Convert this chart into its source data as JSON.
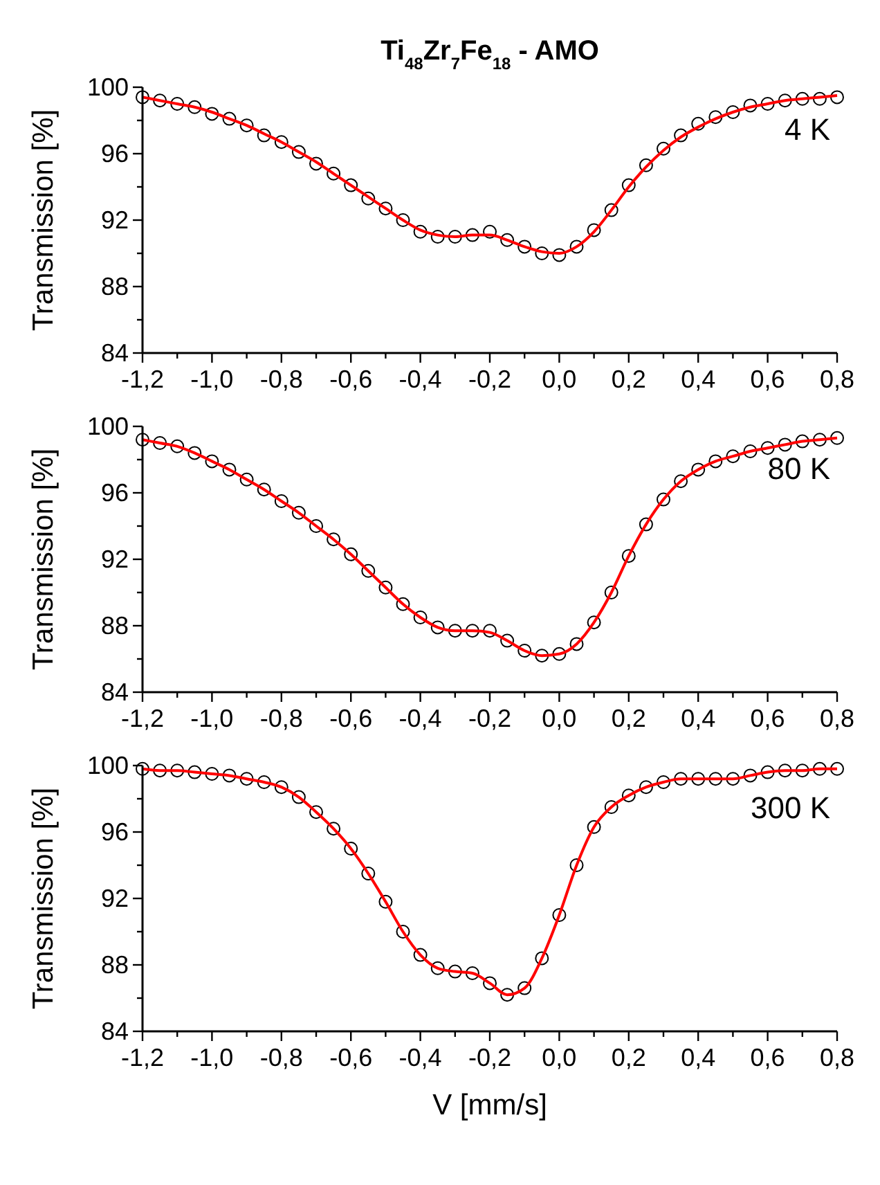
{
  "chart_data": [
    {
      "type": "scatter",
      "title": "Ti$_{48}$Zr$_{7}$Fe$_{18}$ - AMO",
      "ylabel": "Transmission [%]",
      "annotations": [
        "4 K"
      ],
      "x": [
        -1.2,
        -1.15,
        -1.1,
        -1.05,
        -1.0,
        -0.95,
        -0.9,
        -0.85,
        -0.8,
        -0.75,
        -0.7,
        -0.65,
        -0.6,
        -0.55,
        -0.5,
        -0.45,
        -0.4,
        -0.35,
        -0.3,
        -0.25,
        -0.2,
        -0.15,
        -0.1,
        -0.05,
        0.0,
        0.05,
        0.1,
        0.15,
        0.2,
        0.25,
        0.3,
        0.35,
        0.4,
        0.45,
        0.5,
        0.55,
        0.6,
        0.65,
        0.7,
        0.75,
        0.8
      ],
      "series": [
        {
          "marker": "circle",
          "color": "#000000",
          "values": [
            99.4,
            99.2,
            99.0,
            98.8,
            98.4,
            98.1,
            97.7,
            97.1,
            96.7,
            96.1,
            95.4,
            94.8,
            94.1,
            93.3,
            92.7,
            92.0,
            91.3,
            91.0,
            91.0,
            91.1,
            91.3,
            90.8,
            90.4,
            90.0,
            89.9,
            90.4,
            91.4,
            92.6,
            94.1,
            95.3,
            96.3,
            97.1,
            97.8,
            98.2,
            98.5,
            98.9,
            99.0,
            99.2,
            99.3,
            99.3,
            99.4
          ]
        },
        {
          "type": "line",
          "marker": "none",
          "color": "#ff0000",
          "values": [
            99.4,
            99.2,
            99.0,
            98.8,
            98.5,
            98.1,
            97.7,
            97.2,
            96.7,
            96.1,
            95.5,
            94.8,
            94.1,
            93.4,
            92.7,
            92.0,
            91.4,
            91.1,
            91.0,
            91.1,
            91.1,
            90.8,
            90.4,
            90.1,
            90.0,
            90.4,
            91.3,
            92.6,
            94.0,
            95.2,
            96.2,
            97.0,
            97.6,
            98.1,
            98.5,
            98.8,
            99.0,
            99.2,
            99.3,
            99.4,
            99.5
          ]
        }
      ],
      "xlim": [
        -1.2,
        0.8
      ],
      "ylim": [
        84,
        100
      ],
      "xticks": [
        {
          "value": -1.2,
          "label": "-1,2"
        },
        {
          "value": -1.1,
          "label": null
        },
        {
          "value": -1.0,
          "label": "-1,0"
        },
        {
          "value": -0.9,
          "label": null
        },
        {
          "value": -0.8,
          "label": "-0,8"
        },
        {
          "value": -0.7,
          "label": null
        },
        {
          "value": -0.6,
          "label": "-0,6"
        },
        {
          "value": -0.5,
          "label": null
        },
        {
          "value": -0.4,
          "label": "-0,4"
        },
        {
          "value": -0.3,
          "label": null
        },
        {
          "value": -0.2,
          "label": "-0,2"
        },
        {
          "value": -0.1,
          "label": null
        },
        {
          "value": 0.0,
          "label": "0,0"
        },
        {
          "value": 0.1,
          "label": null
        },
        {
          "value": 0.2,
          "label": "0,2"
        },
        {
          "value": 0.3,
          "label": null
        },
        {
          "value": 0.4,
          "label": "0,4"
        },
        {
          "value": 0.5,
          "label": null
        },
        {
          "value": 0.6,
          "label": "0,6"
        },
        {
          "value": 0.7,
          "label": null
        },
        {
          "value": 0.8,
          "label": "0,8"
        }
      ],
      "yticks": [
        84,
        {
          "value": 86,
          "label": null
        },
        88,
        {
          "value": 90,
          "label": null
        },
        92,
        {
          "value": 94,
          "label": null
        },
        96,
        {
          "value": 98,
          "label": null
        },
        100
      ],
      "grid": false
    },
    {
      "type": "scatter",
      "ylabel": "Transmission [%]",
      "annotations": [
        "80 K"
      ],
      "x": [
        -1.2,
        -1.15,
        -1.1,
        -1.05,
        -1.0,
        -0.95,
        -0.9,
        -0.85,
        -0.8,
        -0.75,
        -0.7,
        -0.65,
        -0.6,
        -0.55,
        -0.5,
        -0.45,
        -0.4,
        -0.35,
        -0.3,
        -0.25,
        -0.2,
        -0.15,
        -0.1,
        -0.05,
        0.0,
        0.05,
        0.1,
        0.15,
        0.2,
        0.25,
        0.3,
        0.35,
        0.4,
        0.45,
        0.5,
        0.55,
        0.6,
        0.65,
        0.7,
        0.75,
        0.8
      ],
      "series": [
        {
          "marker": "circle",
          "color": "#000000",
          "values": [
            99.2,
            99.0,
            98.8,
            98.4,
            97.9,
            97.4,
            96.8,
            96.2,
            95.5,
            94.8,
            94.0,
            93.2,
            92.3,
            91.3,
            90.3,
            89.3,
            88.5,
            87.9,
            87.7,
            87.7,
            87.7,
            87.1,
            86.5,
            86.2,
            86.3,
            86.9,
            88.2,
            90.0,
            92.2,
            94.1,
            95.6,
            96.7,
            97.4,
            97.9,
            98.2,
            98.5,
            98.7,
            98.9,
            99.1,
            99.2,
            99.3
          ]
        },
        {
          "type": "line",
          "marker": "none",
          "color": "#ff0000",
          "values": [
            99.2,
            99.0,
            98.8,
            98.4,
            97.9,
            97.4,
            96.8,
            96.2,
            95.5,
            94.8,
            94.0,
            93.2,
            92.3,
            91.3,
            90.3,
            89.3,
            88.5,
            87.9,
            87.7,
            87.7,
            87.6,
            87.1,
            86.5,
            86.2,
            86.3,
            86.9,
            88.2,
            90.0,
            92.2,
            94.1,
            95.6,
            96.7,
            97.4,
            97.9,
            98.2,
            98.5,
            98.7,
            98.9,
            99.1,
            99.2,
            99.3
          ]
        }
      ],
      "xlim": [
        -1.2,
        0.8
      ],
      "ylim": [
        84,
        100
      ],
      "xticks": [
        {
          "value": -1.2,
          "label": "-1,2"
        },
        {
          "value": -1.1,
          "label": null
        },
        {
          "value": -1.0,
          "label": "-1,0"
        },
        {
          "value": -0.9,
          "label": null
        },
        {
          "value": -0.8,
          "label": "-0,8"
        },
        {
          "value": -0.7,
          "label": null
        },
        {
          "value": -0.6,
          "label": "-0,6"
        },
        {
          "value": -0.5,
          "label": null
        },
        {
          "value": -0.4,
          "label": "-0,4"
        },
        {
          "value": -0.3,
          "label": null
        },
        {
          "value": -0.2,
          "label": "-0,2"
        },
        {
          "value": -0.1,
          "label": null
        },
        {
          "value": 0.0,
          "label": "0,0"
        },
        {
          "value": 0.1,
          "label": null
        },
        {
          "value": 0.2,
          "label": "0,2"
        },
        {
          "value": 0.3,
          "label": null
        },
        {
          "value": 0.4,
          "label": "0,4"
        },
        {
          "value": 0.5,
          "label": null
        },
        {
          "value": 0.6,
          "label": "0,6"
        },
        {
          "value": 0.7,
          "label": null
        },
        {
          "value": 0.8,
          "label": "0,8"
        }
      ],
      "yticks": [
        84,
        {
          "value": 86,
          "label": null
        },
        88,
        {
          "value": 90,
          "label": null
        },
        92,
        {
          "value": 94,
          "label": null
        },
        96,
        {
          "value": 98,
          "label": null
        },
        100
      ],
      "grid": false
    },
    {
      "type": "scatter",
      "xlabel": "V [mm/s]",
      "ylabel": "Transmission [%]",
      "annotations": [
        "300 K"
      ],
      "x": [
        -1.2,
        -1.15,
        -1.1,
        -1.05,
        -1.0,
        -0.95,
        -0.9,
        -0.85,
        -0.8,
        -0.75,
        -0.7,
        -0.65,
        -0.6,
        -0.55,
        -0.5,
        -0.45,
        -0.4,
        -0.35,
        -0.3,
        -0.25,
        -0.2,
        -0.15,
        -0.1,
        -0.05,
        0.0,
        0.05,
        0.1,
        0.15,
        0.2,
        0.25,
        0.3,
        0.35,
        0.4,
        0.45,
        0.5,
        0.55,
        0.6,
        0.65,
        0.7,
        0.75,
        0.8
      ],
      "series": [
        {
          "marker": "circle",
          "color": "#000000",
          "values": [
            99.8,
            99.7,
            99.7,
            99.6,
            99.5,
            99.4,
            99.2,
            99.0,
            98.7,
            98.1,
            97.2,
            96.2,
            95.0,
            93.5,
            91.8,
            90.0,
            88.6,
            87.8,
            87.6,
            87.5,
            86.9,
            86.2,
            86.6,
            88.4,
            91.0,
            94.0,
            96.3,
            97.5,
            98.2,
            98.7,
            99.0,
            99.2,
            99.2,
            99.2,
            99.2,
            99.4,
            99.6,
            99.7,
            99.7,
            99.8,
            99.8
          ]
        },
        {
          "type": "line",
          "marker": "none",
          "color": "#ff0000",
          "values": [
            99.8,
            99.7,
            99.7,
            99.6,
            99.5,
            99.4,
            99.2,
            99.0,
            98.7,
            98.1,
            97.2,
            96.2,
            95.0,
            93.5,
            91.8,
            90.0,
            88.6,
            87.8,
            87.6,
            87.5,
            86.9,
            86.2,
            86.6,
            88.4,
            91.0,
            94.0,
            96.3,
            97.5,
            98.2,
            98.7,
            99.0,
            99.2,
            99.2,
            99.2,
            99.2,
            99.4,
            99.6,
            99.7,
            99.7,
            99.8,
            99.8
          ]
        }
      ],
      "xlim": [
        -1.2,
        0.8
      ],
      "ylim": [
        84,
        100
      ],
      "xticks": [
        {
          "value": -1.2,
          "label": "-1,2"
        },
        {
          "value": -1.1,
          "label": null
        },
        {
          "value": -1.0,
          "label": "-1,0"
        },
        {
          "value": -0.9,
          "label": null
        },
        {
          "value": -0.8,
          "label": "-0,8"
        },
        {
          "value": -0.7,
          "label": null
        },
        {
          "value": -0.6,
          "label": "-0,6"
        },
        {
          "value": -0.5,
          "label": null
        },
        {
          "value": -0.4,
          "label": "-0,4"
        },
        {
          "value": -0.3,
          "label": null
        },
        {
          "value": -0.2,
          "label": "-0,2"
        },
        {
          "value": -0.1,
          "label": null
        },
        {
          "value": 0.0,
          "label": "0,0"
        },
        {
          "value": 0.1,
          "label": null
        },
        {
          "value": 0.2,
          "label": "0,2"
        },
        {
          "value": 0.3,
          "label": null
        },
        {
          "value": 0.4,
          "label": "0,4"
        },
        {
          "value": 0.5,
          "label": null
        },
        {
          "value": 0.6,
          "label": "0,6"
        },
        {
          "value": 0.7,
          "label": null
        },
        {
          "value": 0.8,
          "label": "0,8"
        }
      ],
      "yticks": [
        84,
        {
          "value": 86,
          "label": null
        },
        88,
        {
          "value": 90,
          "label": null
        },
        92,
        {
          "value": 94,
          "label": null
        },
        96,
        {
          "value": 98,
          "label": null
        },
        100
      ],
      "grid": false
    }
  ]
}
